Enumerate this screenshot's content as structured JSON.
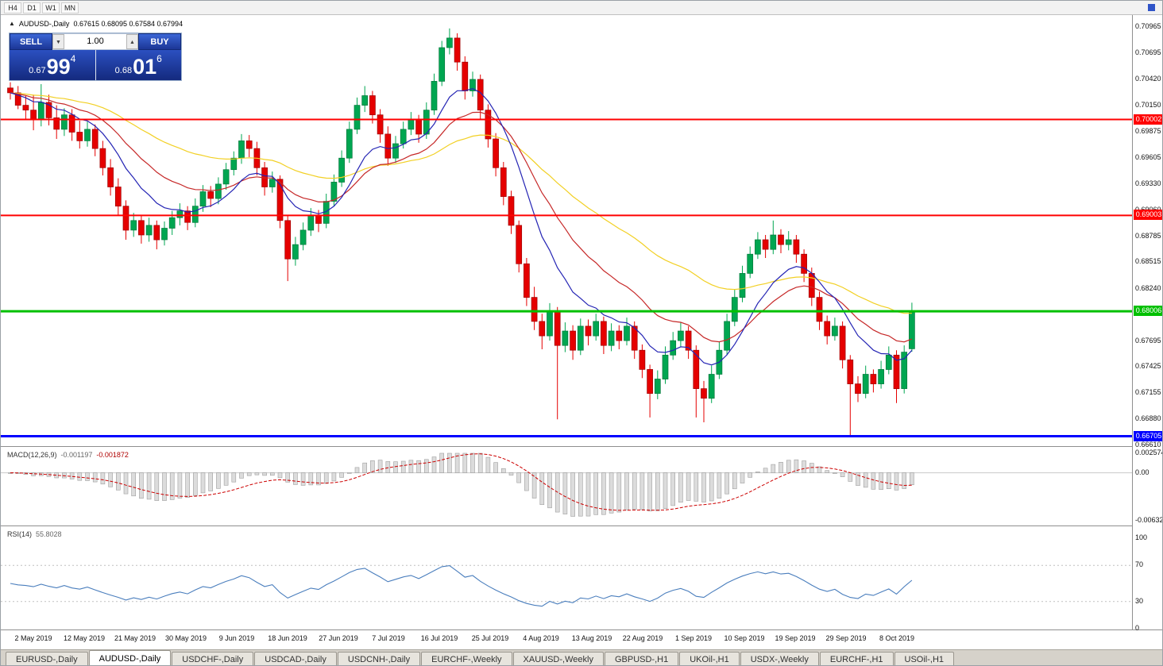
{
  "toolbar": {
    "timeframes": [
      "H4",
      "D1",
      "W1",
      "MN"
    ]
  },
  "header": {
    "title": "AUDUSD-,Daily",
    "ohlc": "0.67615 0.68095 0.67584 0.67994"
  },
  "trade_panel": {
    "sell_label": "SELL",
    "buy_label": "BUY",
    "volume": "1.00",
    "sell_price": {
      "small": "0.67",
      "big": "99",
      "sup": "4"
    },
    "buy_price": {
      "small": "0.68",
      "big": "01",
      "sup": "6"
    }
  },
  "colors": {
    "candle_up": "#00a651",
    "candle_up_border": "#00783a",
    "candle_down": "#e50000",
    "candle_down_border": "#9e0000",
    "ma_fast": "#2424b4",
    "ma_mid": "#c62828",
    "ma_slow": "#f2d024",
    "macd_bar": "#dcdcdc",
    "macd_bar_border": "#9e9e9e",
    "macd_signal": "#cc0000",
    "rsi_line": "#4a7ebd",
    "level_red": "#ff0000",
    "level_green": "#00c000",
    "level_blue": "#0000ff"
  },
  "tabs": {
    "active_index": 1,
    "items": [
      "EURUSD-,Daily",
      "AUDUSD-,Daily",
      "USDCHF-,Daily",
      "USDCAD-,Daily",
      "USDCNH-,Daily",
      "EURCHF-,Weekly",
      "XAUUSD-,Weekly",
      "GBPUSD-,H1",
      "UKOil-,H1",
      "USDX-,Weekly",
      "EURCHF-,H1",
      "USOil-,H1"
    ]
  },
  "chart_data": {
    "type": "candlestick",
    "symbol": "AUDUSD-",
    "timeframe": "Daily",
    "y_axis": {
      "top": 0.70965,
      "bottom": 0.6661,
      "labels": [
        "0.70965",
        "0.70695",
        "0.70420",
        "0.70150",
        "0.69875",
        "0.69605",
        "0.69330",
        "0.69060",
        "0.68785",
        "0.68515",
        "0.68240",
        "0.67970",
        "0.67695",
        "0.67425",
        "0.67155",
        "0.66880",
        "0.66610"
      ]
    },
    "x_labels": [
      "2 May 2019",
      "12 May 2019",
      "21 May 2019",
      "30 May 2019",
      "9 Jun 2019",
      "18 Jun 2019",
      "27 Jun 2019",
      "7 Jul 2019",
      "16 Jul 2019",
      "25 Jul 2019",
      "4 Aug 2019",
      "13 Aug 2019",
      "22 Aug 2019",
      "1 Sep 2019",
      "10 Sep 2019",
      "19 Sep 2019",
      "29 Sep 2019",
      "8 Oct 2019"
    ],
    "levels": [
      {
        "price": 0.70002,
        "label": "0.70002",
        "color": "#ff0000",
        "width": 2
      },
      {
        "price": 0.69003,
        "label": "0.69003",
        "color": "#ff0000",
        "width": 2
      },
      {
        "price": 0.68006,
        "label": "0.68006",
        "color": "#00c000",
        "width": 3
      },
      {
        "price": 0.66705,
        "label": "0.66705",
        "color": "#0000ff",
        "width": 3
      }
    ],
    "indicators": {
      "macd": {
        "name": "MACD(12,26,9)",
        "value_main": "-0.001197",
        "value_signal": "-0.001872",
        "axis_labels": [
          "0.002574",
          "0.00",
          "-0.006326"
        ],
        "axis_values": [
          0.002574,
          0,
          -0.006326
        ]
      },
      "rsi": {
        "name": "RSI(14)",
        "value": "55.8028",
        "axis_labels": [
          "100",
          "70",
          "30",
          "0"
        ],
        "axis_values": [
          100,
          70,
          30,
          0
        ],
        "guide_levels": [
          70,
          30
        ]
      }
    },
    "ohlc": [
      [
        0.7033,
        0.7039,
        0.7021,
        0.7028
      ],
      [
        0.7028,
        0.7035,
        0.7011,
        0.7015
      ],
      [
        0.7015,
        0.7025,
        0.7001,
        0.701
      ],
      [
        0.701,
        0.7026,
        0.6989,
        0.7
      ],
      [
        0.7,
        0.7037,
        0.6993,
        0.7018
      ],
      [
        0.7018,
        0.7026,
        0.6994,
        0.7002
      ],
      [
        0.7002,
        0.7015,
        0.698,
        0.699
      ],
      [
        0.699,
        0.7012,
        0.6983,
        0.7005
      ],
      [
        0.7005,
        0.7011,
        0.6978,
        0.6987
      ],
      [
        0.6987,
        0.6999,
        0.697,
        0.6978
      ],
      [
        0.6978,
        0.6998,
        0.6972,
        0.699
      ],
      [
        0.699,
        0.6995,
        0.6962,
        0.697
      ],
      [
        0.697,
        0.6978,
        0.6942,
        0.695
      ],
      [
        0.695,
        0.6959,
        0.6921,
        0.693
      ],
      [
        0.693,
        0.6939,
        0.6901,
        0.691
      ],
      [
        0.691,
        0.6916,
        0.6875,
        0.6885
      ],
      [
        0.6885,
        0.6903,
        0.6878,
        0.6895
      ],
      [
        0.6895,
        0.69,
        0.6871,
        0.688
      ],
      [
        0.688,
        0.6898,
        0.6873,
        0.689
      ],
      [
        0.689,
        0.6895,
        0.6865,
        0.6875
      ],
      [
        0.6875,
        0.6894,
        0.6869,
        0.6887
      ],
      [
        0.6887,
        0.6905,
        0.688,
        0.6898
      ],
      [
        0.6898,
        0.6913,
        0.689,
        0.6905
      ],
      [
        0.6905,
        0.691,
        0.6885,
        0.6893
      ],
      [
        0.6893,
        0.6918,
        0.6888,
        0.691
      ],
      [
        0.691,
        0.6932,
        0.6904,
        0.6925
      ],
      [
        0.6925,
        0.6931,
        0.6909,
        0.6918
      ],
      [
        0.6918,
        0.694,
        0.6912,
        0.6933
      ],
      [
        0.6933,
        0.6955,
        0.6927,
        0.6948
      ],
      [
        0.6948,
        0.6967,
        0.6942,
        0.696
      ],
      [
        0.696,
        0.6985,
        0.6954,
        0.6978
      ],
      [
        0.6978,
        0.6984,
        0.6961,
        0.697
      ],
      [
        0.697,
        0.6977,
        0.6942,
        0.695
      ],
      [
        0.695,
        0.6956,
        0.6921,
        0.693
      ],
      [
        0.693,
        0.6946,
        0.6924,
        0.6938
      ],
      [
        0.6938,
        0.6942,
        0.6887,
        0.6895
      ],
      [
        0.6895,
        0.6901,
        0.6832,
        0.6855
      ],
      [
        0.6855,
        0.6878,
        0.6848,
        0.687
      ],
      [
        0.687,
        0.6893,
        0.6864,
        0.6885
      ],
      [
        0.6885,
        0.6908,
        0.6879,
        0.69
      ],
      [
        0.69,
        0.6906,
        0.6883,
        0.6892
      ],
      [
        0.6892,
        0.6923,
        0.6887,
        0.6915
      ],
      [
        0.6915,
        0.6943,
        0.691,
        0.6935
      ],
      [
        0.6935,
        0.6968,
        0.693,
        0.696
      ],
      [
        0.696,
        0.6998,
        0.6955,
        0.699
      ],
      [
        0.699,
        0.7023,
        0.6985,
        0.7015
      ],
      [
        0.7015,
        0.7035,
        0.7008,
        0.7025
      ],
      [
        0.7025,
        0.703,
        0.6996,
        0.7005
      ],
      [
        0.7005,
        0.7011,
        0.6976,
        0.6985
      ],
      [
        0.6985,
        0.6993,
        0.6952,
        0.696
      ],
      [
        0.696,
        0.6983,
        0.6955,
        0.6975
      ],
      [
        0.6975,
        0.6998,
        0.697,
        0.699
      ],
      [
        0.699,
        0.7008,
        0.6984,
        0.7
      ],
      [
        0.7,
        0.7005,
        0.6976,
        0.6985
      ],
      [
        0.6985,
        0.7018,
        0.698,
        0.701
      ],
      [
        0.701,
        0.7048,
        0.7005,
        0.704
      ],
      [
        0.704,
        0.7082,
        0.7035,
        0.7075
      ],
      [
        0.7075,
        0.7095,
        0.7068,
        0.7085
      ],
      [
        0.7085,
        0.709,
        0.7051,
        0.706
      ],
      [
        0.706,
        0.7066,
        0.7021,
        0.703
      ],
      [
        0.703,
        0.705,
        0.7024,
        0.7042
      ],
      [
        0.7042,
        0.7047,
        0.7001,
        0.701
      ],
      [
        0.701,
        0.7016,
        0.6971,
        0.698
      ],
      [
        0.698,
        0.6986,
        0.6941,
        0.695
      ],
      [
        0.695,
        0.6956,
        0.6911,
        0.692
      ],
      [
        0.692,
        0.6926,
        0.6881,
        0.689
      ],
      [
        0.689,
        0.6895,
        0.6841,
        0.685
      ],
      [
        0.685,
        0.6856,
        0.6806,
        0.6815
      ],
      [
        0.6815,
        0.6826,
        0.6781,
        0.679
      ],
      [
        0.679,
        0.6798,
        0.6761,
        0.6775
      ],
      [
        0.6775,
        0.6809,
        0.677,
        0.68
      ],
      [
        0.68,
        0.6805,
        0.6688,
        0.6765
      ],
      [
        0.6765,
        0.6789,
        0.6758,
        0.678
      ],
      [
        0.678,
        0.6786,
        0.675,
        0.676
      ],
      [
        0.676,
        0.6793,
        0.6755,
        0.6785
      ],
      [
        0.6785,
        0.6792,
        0.6765,
        0.6775
      ],
      [
        0.6775,
        0.6798,
        0.677,
        0.679
      ],
      [
        0.679,
        0.6795,
        0.6756,
        0.6765
      ],
      [
        0.6765,
        0.6788,
        0.6759,
        0.678
      ],
      [
        0.678,
        0.6786,
        0.6761,
        0.677
      ],
      [
        0.677,
        0.6794,
        0.6765,
        0.6785
      ],
      [
        0.6785,
        0.679,
        0.6751,
        0.676
      ],
      [
        0.676,
        0.6766,
        0.6731,
        0.674
      ],
      [
        0.674,
        0.6745,
        0.669,
        0.6715
      ],
      [
        0.6715,
        0.6739,
        0.6709,
        0.673
      ],
      [
        0.673,
        0.6764,
        0.6725,
        0.6755
      ],
      [
        0.6755,
        0.6779,
        0.675,
        0.677
      ],
      [
        0.677,
        0.6789,
        0.6764,
        0.678
      ],
      [
        0.678,
        0.6785,
        0.6751,
        0.676
      ],
      [
        0.676,
        0.6765,
        0.669,
        0.672
      ],
      [
        0.672,
        0.6728,
        0.6685,
        0.671
      ],
      [
        0.671,
        0.6744,
        0.6705,
        0.6735
      ],
      [
        0.6735,
        0.6769,
        0.673,
        0.676
      ],
      [
        0.676,
        0.6798,
        0.6755,
        0.679
      ],
      [
        0.679,
        0.6823,
        0.6785,
        0.6815
      ],
      [
        0.6815,
        0.6848,
        0.681,
        0.684
      ],
      [
        0.684,
        0.6868,
        0.6835,
        0.686
      ],
      [
        0.686,
        0.6883,
        0.6855,
        0.6875
      ],
      [
        0.6875,
        0.688,
        0.6856,
        0.6865
      ],
      [
        0.6865,
        0.6895,
        0.686,
        0.688
      ],
      [
        0.688,
        0.6886,
        0.6861,
        0.687
      ],
      [
        0.687,
        0.6884,
        0.6864,
        0.6875
      ],
      [
        0.6875,
        0.688,
        0.6851,
        0.686
      ],
      [
        0.686,
        0.6865,
        0.6831,
        0.684
      ],
      [
        0.684,
        0.6846,
        0.6806,
        0.6815
      ],
      [
        0.6815,
        0.6821,
        0.6781,
        0.679
      ],
      [
        0.679,
        0.6796,
        0.6766,
        0.6775
      ],
      [
        0.6775,
        0.6794,
        0.677,
        0.6785
      ],
      [
        0.6785,
        0.679,
        0.6741,
        0.675
      ],
      [
        0.675,
        0.6755,
        0.667,
        0.6725
      ],
      [
        0.6725,
        0.6733,
        0.6706,
        0.6715
      ],
      [
        0.6715,
        0.6744,
        0.671,
        0.6735
      ],
      [
        0.6735,
        0.674,
        0.6716,
        0.6725
      ],
      [
        0.6725,
        0.6749,
        0.672,
        0.674
      ],
      [
        0.674,
        0.6764,
        0.6735,
        0.6755
      ],
      [
        0.6755,
        0.676,
        0.6705,
        0.672
      ],
      [
        0.672,
        0.6765,
        0.6715,
        0.6758
      ],
      [
        0.67615,
        0.68095,
        0.67584,
        0.67994
      ]
    ]
  }
}
